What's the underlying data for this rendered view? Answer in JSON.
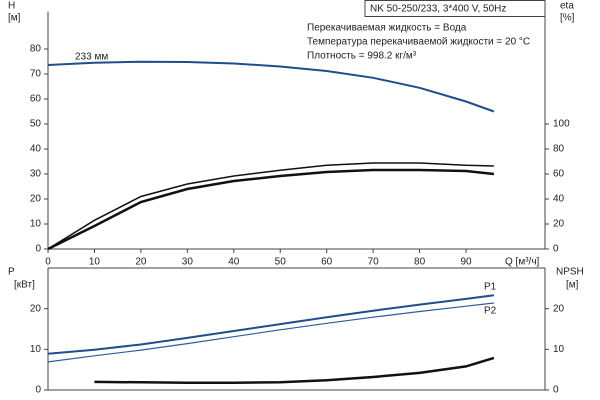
{
  "chart_data": [
    {
      "type": "line",
      "title": "NK 50-250/233, 3*400 V, 50Hz",
      "annotations": [
        "Перекачиваемая жидкость = Вода",
        "Температура перекачиваемой жидкости = 20 °C",
        "Плотность = 998.2 кг/м³"
      ],
      "ylabel": "H",
      "yunit": "[м]",
      "y2label": "eta",
      "y2unit": "[%]",
      "xlabel": "Q [м³/ч]",
      "x": [
        0,
        10,
        20,
        30,
        40,
        50,
        60,
        70,
        80,
        90,
        96
      ],
      "xlim": [
        0,
        107
      ],
      "xticks": [
        0,
        10,
        20,
        30,
        40,
        50,
        60,
        70,
        80,
        90
      ],
      "ylim": [
        0,
        95
      ],
      "yticks": [
        0,
        10,
        20,
        30,
        40,
        50,
        60,
        70,
        80
      ],
      "y2lim": [
        0,
        190
      ],
      "y2ticks": [
        0,
        20,
        40,
        60,
        80,
        100
      ],
      "series": [
        {
          "name": "233 мм",
          "color": "#1f4e8c",
          "values": [
            73.6,
            74.5,
            74.9,
            74.8,
            74.2,
            73,
            71.2,
            68.5,
            64.5,
            59,
            55
          ]
        },
        {
          "color": "#111111",
          "axis": "y2",
          "values": [
            0,
            23,
            42,
            52,
            58.4,
            63,
            67,
            68.8,
            68.8,
            67,
            66.4
          ]
        },
        {
          "color": "#111111",
          "axis": "y2",
          "values": [
            0,
            18.4,
            37.6,
            48,
            54.4,
            58.4,
            61.6,
            63.2,
            63.2,
            62.4,
            60
          ]
        }
      ]
    },
    {
      "type": "line",
      "ylabel": "P",
      "yunit": "[кВт]",
      "y2label": "NPSH",
      "y2unit": "[м]",
      "x": [
        0,
        10,
        20,
        30,
        40,
        50,
        60,
        70,
        80,
        90,
        96
      ],
      "xlim": [
        0,
        107
      ],
      "ylim": [
        0,
        30
      ],
      "yticks": [
        0,
        10,
        20
      ],
      "y2lim": [
        0,
        30
      ],
      "y2ticks": [
        0,
        10,
        20
      ],
      "series": [
        {
          "name": "P1",
          "color": "#1f4e8c",
          "values": [
            8.9,
            9.9,
            11.2,
            12.8,
            14.5,
            16.2,
            17.9,
            19.5,
            21.0,
            22.4,
            23.3
          ]
        },
        {
          "name": "P2",
          "color": "#2e5d9c",
          "values": [
            6.9,
            8.4,
            9.8,
            11.4,
            13.1,
            14.8,
            16.4,
            17.9,
            19.3,
            20.6,
            21.4
          ]
        },
        {
          "color": "#111111",
          "axis": "y2",
          "values": [
            null,
            2.0,
            1.9,
            1.8,
            1.8,
            1.9,
            2.4,
            3.2,
            4.2,
            5.8,
            7.9
          ]
        }
      ]
    }
  ]
}
